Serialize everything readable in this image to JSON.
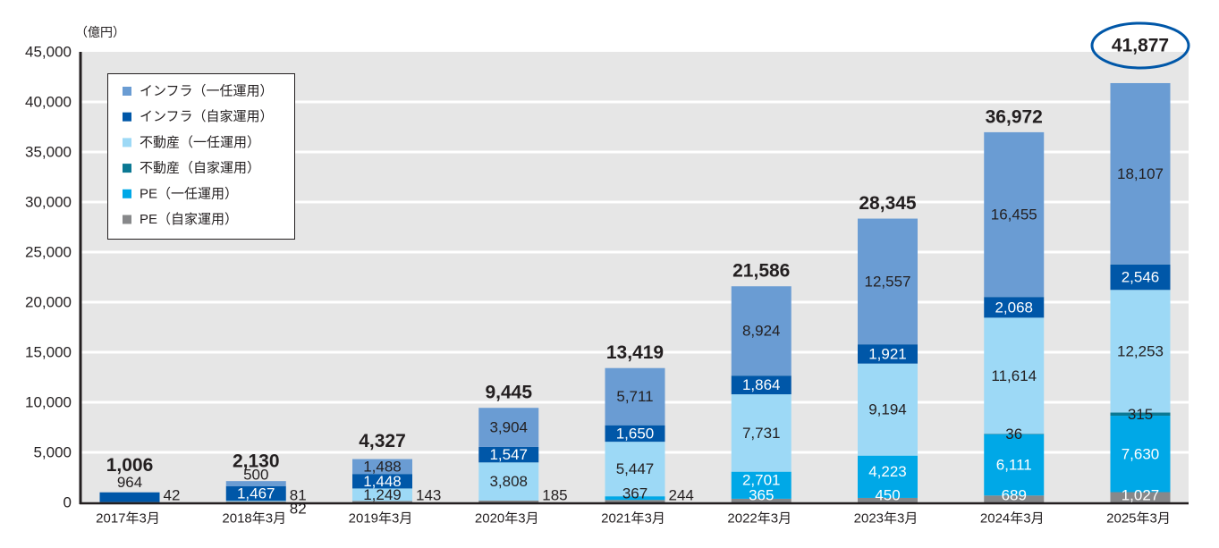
{
  "chart_data": {
    "type": "bar",
    "stacked": true,
    "title": "",
    "xlabel": "",
    "ylabel": "（億円）",
    "ylim": [
      0,
      45000
    ],
    "yticks": [
      0,
      5000,
      10000,
      15000,
      20000,
      25000,
      30000,
      35000,
      40000,
      45000
    ],
    "ytick_labels": [
      "0",
      "5,000",
      "10,000",
      "15,000",
      "20,000",
      "25,000",
      "30,000",
      "35,000",
      "40,000",
      "45,000"
    ],
    "grid": true,
    "legend": {
      "position": "top-left"
    },
    "categories": [
      "2017年3月",
      "2018年3月",
      "2019年3月",
      "2020年3月",
      "2021年3月",
      "2022年3月",
      "2023年3月",
      "2024年3月",
      "2025年3月"
    ],
    "series": [
      {
        "name": "インフラ（一任運用）",
        "color": "#6a9cd3",
        "values": [
          null,
          500,
          1488,
          3904,
          5711,
          8924,
          12557,
          16455,
          18107
        ],
        "labels": [
          null,
          "500",
          "1,488",
          "3,904",
          "5,711",
          "8,924",
          "12,557",
          "16,455",
          "18,107"
        ]
      },
      {
        "name": "インフラ（自家運用）",
        "color": "#0057a8",
        "values": [
          964,
          1467,
          1448,
          1547,
          1650,
          1864,
          1921,
          2068,
          2546
        ],
        "labels": [
          "964",
          "1,467",
          "1,448",
          "1,547",
          "1,650",
          "1,864",
          "1,921",
          "2,068",
          "2,546"
        ]
      },
      {
        "name": "不動産（一任運用）",
        "color": "#9dd9f6",
        "values": [
          null,
          81,
          1249,
          3808,
          5447,
          7731,
          9194,
          11614,
          12253
        ],
        "labels": [
          null,
          "81",
          "1,249",
          "3,808",
          "5,447",
          "7,731",
          "9,194",
          "11,614",
          "12,253"
        ]
      },
      {
        "name": "不動産（自家運用）",
        "color": "#0b7893",
        "values": [
          null,
          null,
          null,
          null,
          null,
          null,
          null,
          36,
          315
        ],
        "labels": [
          null,
          null,
          null,
          null,
          null,
          null,
          null,
          "36",
          "315"
        ]
      },
      {
        "name": "PE（一任運用）",
        "color": "#00a8e7",
        "values": [
          null,
          null,
          null,
          null,
          367,
          2701,
          4223,
          6111,
          7630
        ],
        "labels": [
          null,
          null,
          null,
          null,
          "367",
          "2,701",
          "4,223",
          "6,111",
          "7,630"
        ]
      },
      {
        "name": "PE（自家運用）",
        "color": "#87888a",
        "values": [
          42,
          82,
          143,
          185,
          244,
          365,
          450,
          689,
          1027
        ],
        "labels": [
          "42",
          "82",
          "143",
          "185",
          "244",
          "365",
          "450",
          "689",
          "1,027"
        ]
      }
    ],
    "totals": [
      1006,
      2130,
      4327,
      9445,
      13419,
      21586,
      28345,
      36972,
      41877
    ],
    "total_labels": [
      "1,006",
      "2,130",
      "4,327",
      "9,445",
      "13,419",
      "21,586",
      "28,345",
      "36,972",
      "41,877"
    ],
    "annotations": [
      {
        "type": "circle",
        "target": "total",
        "category": "2025年3月",
        "color": "#0057a8"
      }
    ],
    "colors": {
      "plot_background": "#e6e6e6",
      "gridline": "#ffffff",
      "axis": "#231f20",
      "text_dark": "#231f20",
      "text_light": "#ffffff"
    }
  }
}
